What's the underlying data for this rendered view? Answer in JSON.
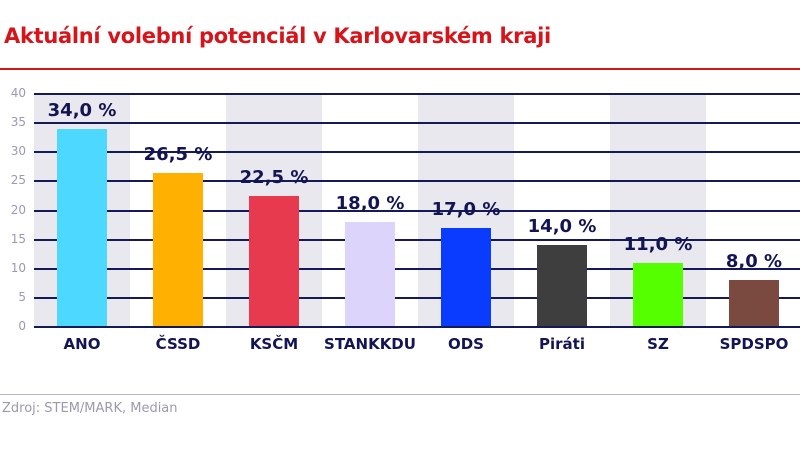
{
  "title": "Aktuální volební potenciál v Karlovarském kraji",
  "source": "Zdroj: STEM/MARK, Median",
  "colors": {
    "title": "#d7141a",
    "label": "#141454",
    "band": "#e8e8ee",
    "grid": "#141a58"
  },
  "chart_data": {
    "type": "bar",
    "title": "Aktuální volební potenciál v Karlovarském kraji",
    "xlabel": "",
    "ylabel": "",
    "ylim": [
      0,
      40
    ],
    "yticks": [
      0,
      5,
      10,
      15,
      20,
      25,
      30,
      35,
      40
    ],
    "grid": true,
    "legend": "none",
    "categories": [
      "ANO",
      "ČSSD",
      "KSČM",
      "STANKKDU",
      "ODS",
      "Piráti",
      "SZ",
      "SPDSPO"
    ],
    "values": [
      34.0,
      26.5,
      22.5,
      18.0,
      17.0,
      14.0,
      11.0,
      8.0
    ],
    "value_labels": [
      "34,0 %",
      "26,5 %",
      "22,5 %",
      "18,0 %",
      "17,0 %",
      "14,0 %",
      "11,0 %",
      "8,0 %"
    ],
    "bar_colors": [
      "#4dd9ff",
      "#ffb000",
      "#e83a4e",
      "#dcd4fa",
      "#0a3cff",
      "#3e3e3e",
      "#55ff00",
      "#7a4a40"
    ],
    "source": "Zdroj: STEM/MARK, Median"
  }
}
